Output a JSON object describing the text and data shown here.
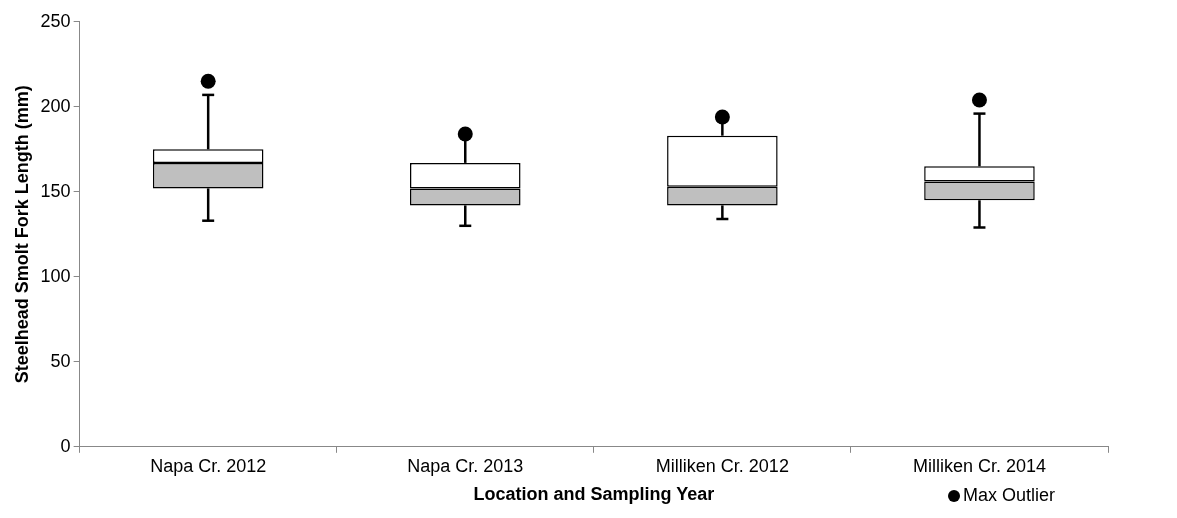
{
  "chart_data": {
    "type": "box",
    "xlabel": "Location and Sampling Year",
    "ylabel": "Steelhead Smolt Fork Length (mm)",
    "categories": [
      "Napa Cr. 2012",
      "Napa Cr. 2013",
      "Milliken Cr. 2012",
      "Milliken Cr. 2014"
    ],
    "series": [
      {
        "name": "Max Outlier",
        "color": "#bfbfbf",
        "boxes": [
          {
            "low": 133,
            "q1": 152,
            "median": 167,
            "q3": 175,
            "high": 207,
            "outliers": [
              215
            ]
          },
          {
            "low": 130,
            "q1": 142,
            "median": 152,
            "q3": 167,
            "high": 183,
            "outliers": [
              184
            ]
          },
          {
            "low": 134,
            "q1": 142,
            "median": 153,
            "q3": 183,
            "high": 192,
            "outliers": [
              194
            ]
          },
          {
            "low": 129,
            "q1": 145,
            "median": 156,
            "q3": 165,
            "high": 196,
            "outliers": [
              204
            ]
          }
        ]
      }
    ],
    "ylim": [
      0,
      250
    ],
    "yticks": [
      0,
      50,
      100,
      150,
      200,
      250
    ],
    "grid": false,
    "legend": "bottom right"
  }
}
